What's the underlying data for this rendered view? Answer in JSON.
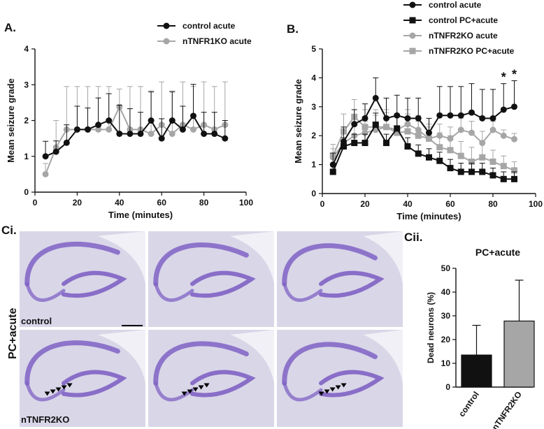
{
  "panels": {
    "a_label": "A.",
    "b_label": "B.",
    "ci_label": "Ci.",
    "cii_label": "Cii."
  },
  "micrographs": {
    "row_label": "PC+acute",
    "control_label": "control",
    "ko_label": "nTNFR2KO"
  },
  "colors": {
    "black": "#111111",
    "gray": "#a6a6a6",
    "tissue_bg": "#d9d6e8",
    "cell_band": "#7f63c4"
  },
  "chart_data": [
    {
      "id": "A",
      "type": "line",
      "title": "",
      "xlabel": "Time (minutes)",
      "ylabel": "Mean seizure grade",
      "xlim": [
        0,
        100
      ],
      "ylim": [
        0,
        4
      ],
      "xticks": [
        0,
        20,
        40,
        60,
        80,
        100
      ],
      "yticks": [
        0,
        1,
        2,
        3,
        4
      ],
      "legend": "top-right",
      "x": [
        5,
        10,
        15,
        20,
        25,
        30,
        35,
        40,
        45,
        50,
        55,
        60,
        65,
        70,
        75,
        80,
        85,
        90
      ],
      "series": [
        {
          "name": "control acute",
          "color": "#111111",
          "marker": "circle",
          "values": [
            1.0,
            1.13,
            1.38,
            1.75,
            1.75,
            1.88,
            2.0,
            1.63,
            1.63,
            1.63,
            2.0,
            1.5,
            2.0,
            1.75,
            2.13,
            1.63,
            1.63,
            1.5
          ],
          "err": [
            0.42,
            0.3,
            0.5,
            0.65,
            0.6,
            0.75,
            0.75,
            0.8,
            0.7,
            0.6,
            0.8,
            0.55,
            0.8,
            0.65,
            0.88,
            0.6,
            0.6,
            0.5
          ]
        },
        {
          "name": "nTNFR1KO acute",
          "color": "#a6a6a6",
          "marker": "circle",
          "values": [
            0.5,
            1.25,
            1.75,
            1.75,
            1.75,
            1.75,
            1.75,
            2.38,
            1.75,
            1.75,
            1.63,
            1.88,
            1.63,
            1.88,
            1.75,
            1.88,
            1.75,
            1.88
          ],
          "err": [
            0.3,
            0.75,
            1.2,
            1.2,
            1.2,
            1.2,
            1.2,
            0.5,
            1.2,
            1.2,
            1.2,
            1.2,
            1.2,
            1.2,
            1.2,
            1.2,
            1.2,
            1.2
          ]
        }
      ]
    },
    {
      "id": "B",
      "type": "line",
      "title": "",
      "xlabel": "Time (minutes)",
      "ylabel": "Mean seizure grade",
      "xlim": [
        0,
        100
      ],
      "ylim": [
        0,
        5
      ],
      "xticks": [
        0,
        20,
        40,
        60,
        80,
        100
      ],
      "yticks": [
        0,
        1,
        2,
        3,
        4,
        5
      ],
      "legend": "top-right",
      "annotations": [
        "*",
        "*"
      ],
      "x": [
        5,
        10,
        15,
        20,
        25,
        30,
        35,
        40,
        45,
        50,
        55,
        60,
        65,
        70,
        75,
        80,
        85,
        90
      ],
      "series": [
        {
          "name": "control acute",
          "color": "#111111",
          "marker": "circle",
          "values": [
            1.0,
            1.8,
            2.4,
            2.6,
            3.3,
            2.6,
            2.7,
            2.6,
            2.6,
            2.1,
            2.7,
            2.7,
            2.7,
            2.8,
            2.6,
            2.6,
            2.9,
            3.0
          ],
          "err": [
            0.4,
            0.5,
            0.5,
            0.5,
            0.7,
            0.7,
            0.7,
            0.7,
            0.7,
            0.5,
            1.0,
            1.0,
            1.0,
            1.0,
            1.0,
            1.0,
            0.9,
            0.9
          ]
        },
        {
          "name": "control PC+acute",
          "color": "#111111",
          "marker": "square",
          "values": [
            0.75,
            1.63,
            1.75,
            1.75,
            2.38,
            1.75,
            2.25,
            1.63,
            1.38,
            1.25,
            1.13,
            0.88,
            0.75,
            0.75,
            0.75,
            0.63,
            0.5,
            0.5
          ],
          "err": [
            0.2,
            0.3,
            0.3,
            0.3,
            0.4,
            0.3,
            0.4,
            0.3,
            0.3,
            0.3,
            0.3,
            0.3,
            0.3,
            0.3,
            0.3,
            0.25,
            0.25,
            0.25
          ]
        },
        {
          "name": "nTNFR2KO acute",
          "color": "#a6a6a6",
          "marker": "circle",
          "values": [
            1.25,
            1.75,
            2.0,
            2.1,
            2.2,
            2.3,
            2.2,
            2.4,
            2.2,
            1.9,
            2.0,
            1.9,
            2.2,
            2.1,
            1.75,
            2.2,
            2.0,
            1.88
          ],
          "err": [
            0.3,
            0.4,
            0.4,
            0.4,
            0.5,
            0.5,
            0.5,
            0.5,
            0.5,
            0.4,
            0.4,
            0.4,
            0.4,
            0.4,
            0.4,
            0.3,
            0.2,
            0.2
          ]
        },
        {
          "name": "nTNFR2KO PC+acute",
          "color": "#a6a6a6",
          "marker": "square",
          "values": [
            1.3,
            2.15,
            2.65,
            2.3,
            2.3,
            2.3,
            2.1,
            2.15,
            2.0,
            1.9,
            1.6,
            1.5,
            1.3,
            1.1,
            1.25,
            1.1,
            0.95,
            0.8
          ],
          "err": [
            0.4,
            0.6,
            0.6,
            0.6,
            0.6,
            0.6,
            0.6,
            0.6,
            0.5,
            0.5,
            0.5,
            0.5,
            0.5,
            0.5,
            0.5,
            0.4,
            0.35,
            0.3
          ]
        }
      ]
    },
    {
      "id": "Cii",
      "type": "bar",
      "title": "PC+acute",
      "xlabel": "",
      "ylabel": "Dead neurons (%)",
      "ylim": [
        0,
        50
      ],
      "yticks": [
        0,
        10,
        20,
        30,
        40,
        50
      ],
      "categories": [
        "control",
        "nTNFR2KO"
      ],
      "values": [
        13.5,
        27.8
      ],
      "err": [
        12.5,
        17.2
      ],
      "colors": [
        "#111111",
        "#a6a6a6"
      ]
    }
  ]
}
